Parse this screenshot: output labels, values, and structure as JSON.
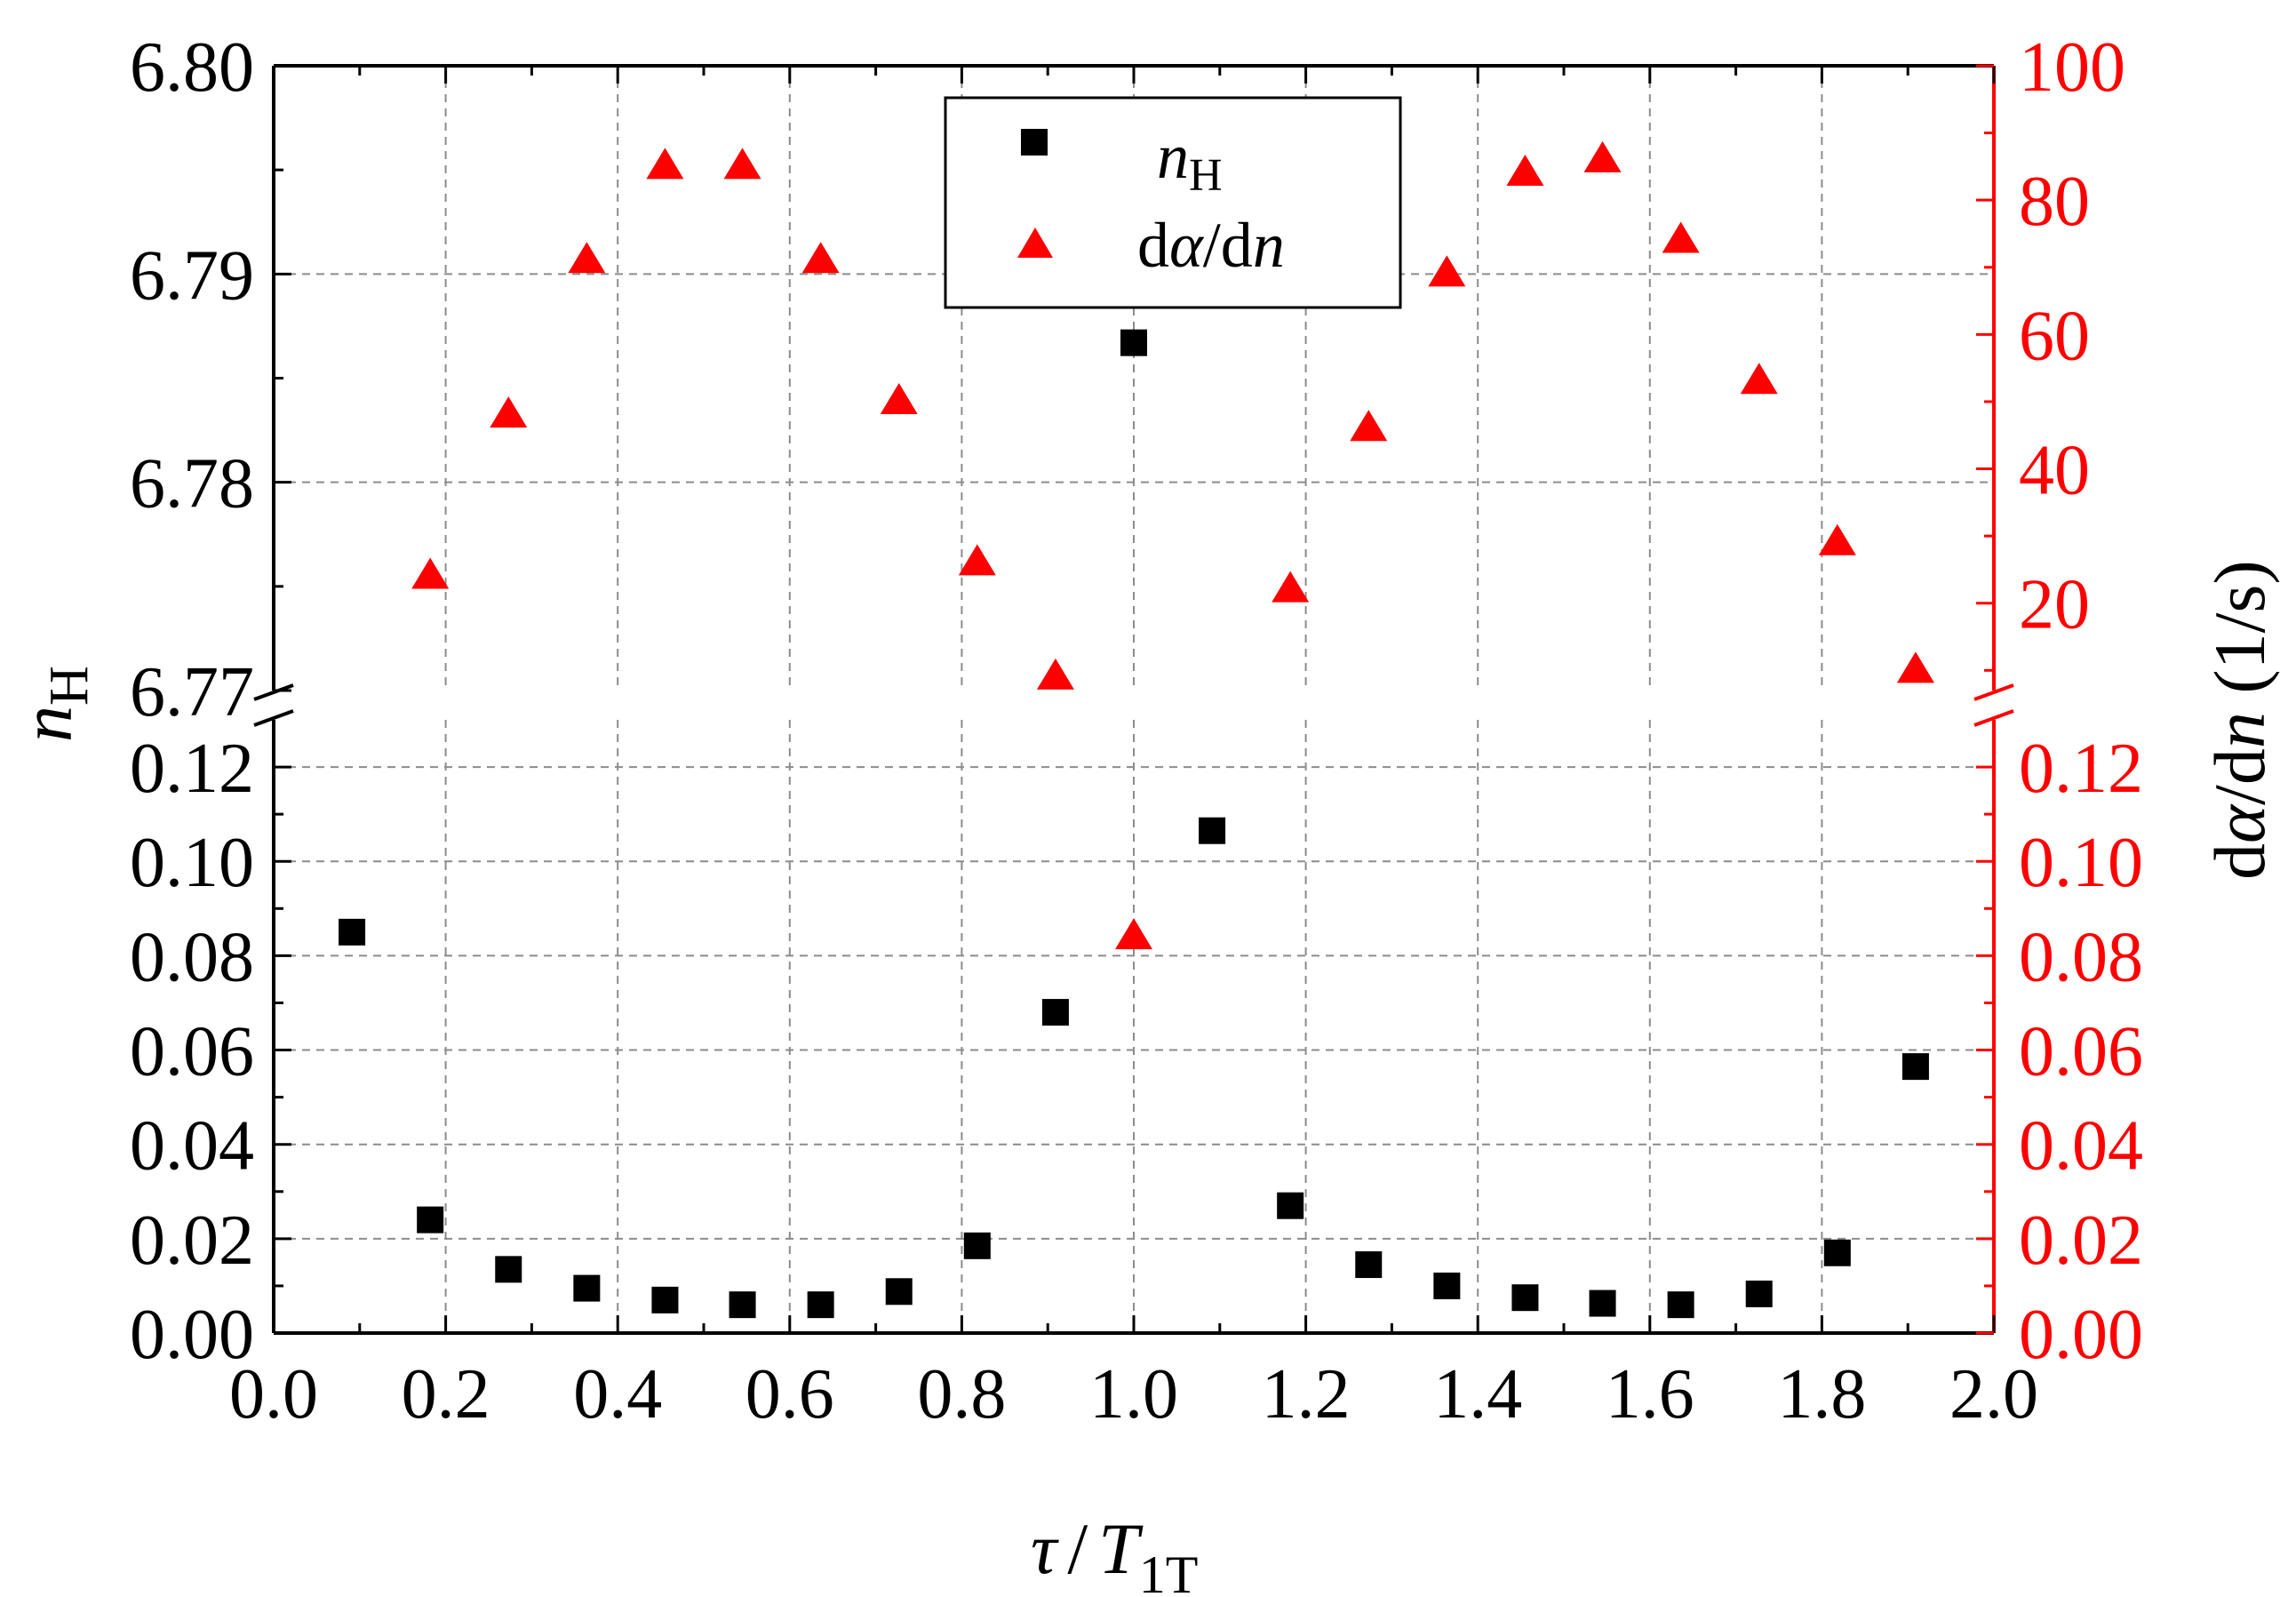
{
  "chart_data": {
    "type": "scatter",
    "title": "",
    "xlabel": {
      "symbol": "τ",
      "sep": "/",
      "denom": "T",
      "denom_sub": "1T"
    },
    "ylabel_left": {
      "symbol": "n",
      "sub": "H"
    },
    "ylabel_right": {
      "prefix": "d",
      "alpha": "α",
      "mid": "/d",
      "var": "n",
      "unit": " (1/s)"
    },
    "xlim": [
      0.0,
      2.0
    ],
    "x_ticks": [
      "0.0",
      "0.2",
      "0.4",
      "0.6",
      "0.8",
      "1.0",
      "1.2",
      "1.4",
      "1.6",
      "1.8",
      "2.0"
    ],
    "y_left_lower": {
      "range": [
        0.0,
        0.13
      ],
      "ticks": [
        "0.00",
        "0.02",
        "0.04",
        "0.06",
        "0.08",
        "0.10",
        "0.12"
      ]
    },
    "y_left_upper": {
      "range": [
        6.77,
        6.8
      ],
      "ticks": [
        "6.77",
        "6.78",
        "6.79",
        "6.80"
      ]
    },
    "y_right_lower": {
      "range": [
        0.0,
        0.13
      ],
      "ticks": [
        "0.00",
        "0.02",
        "0.04",
        "0.06",
        "0.08",
        "0.10",
        "0.12"
      ]
    },
    "y_right_upper": {
      "range": [
        7,
        100
      ],
      "ticks": [
        "20",
        "40",
        "60",
        "80",
        "100"
      ]
    },
    "axis_break": true,
    "grid": true,
    "legend": {
      "position": "top-center",
      "entries": [
        {
          "series": "nH",
          "symbol": "n",
          "sub": "H",
          "marker": "square",
          "color": "#000000"
        },
        {
          "series": "dadn",
          "prefix": "d",
          "alpha": "α",
          "mid": "/d",
          "var": "n",
          "marker": "triangle",
          "color": "#ff0000"
        }
      ]
    },
    "series": [
      {
        "name": "nH",
        "axis": "left",
        "marker": "square",
        "color": "#000000",
        "points": [
          [
            0.091,
            0.085
          ],
          [
            0.182,
            0.024
          ],
          [
            0.273,
            0.0135
          ],
          [
            0.364,
            0.0095
          ],
          [
            0.455,
            0.007
          ],
          [
            0.545,
            0.006
          ],
          [
            0.636,
            0.006
          ],
          [
            0.727,
            0.0088
          ],
          [
            0.818,
            0.0185
          ],
          [
            0.909,
            0.068
          ],
          [
            1.0,
            6.7867
          ],
          [
            1.091,
            0.1065
          ],
          [
            1.182,
            0.027
          ],
          [
            1.273,
            0.0145
          ],
          [
            1.364,
            0.01
          ],
          [
            1.455,
            0.0075
          ],
          [
            1.545,
            0.0063
          ],
          [
            1.636,
            0.006
          ],
          [
            1.727,
            0.0083
          ],
          [
            1.818,
            0.017
          ],
          [
            1.909,
            0.0565
          ]
        ]
      },
      {
        "name": "dadn",
        "axis": "right",
        "marker": "triangle",
        "color": "#ff0000",
        "points": [
          [
            0.182,
            24
          ],
          [
            0.273,
            48
          ],
          [
            0.364,
            71
          ],
          [
            0.455,
            85
          ],
          [
            0.545,
            85
          ],
          [
            0.636,
            71
          ],
          [
            0.727,
            50
          ],
          [
            0.818,
            26
          ],
          [
            0.909,
            9
          ],
          [
            1.0,
            0.084
          ],
          [
            1.182,
            22
          ],
          [
            1.273,
            46
          ],
          [
            1.364,
            69
          ],
          [
            1.455,
            84
          ],
          [
            1.545,
            86
          ],
          [
            1.636,
            74
          ],
          [
            1.727,
            53
          ],
          [
            1.818,
            29
          ],
          [
            1.909,
            10
          ]
        ]
      }
    ]
  }
}
